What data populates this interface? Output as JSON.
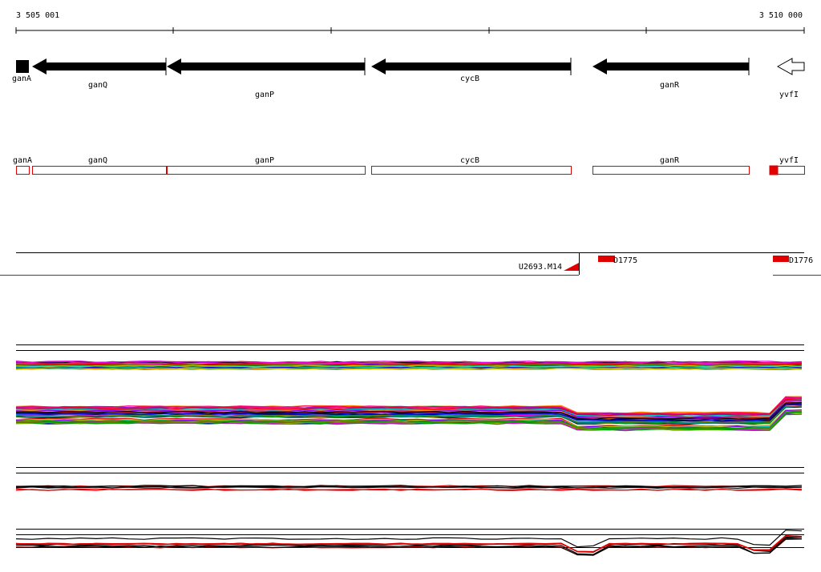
{
  "ruler": {
    "start": "3 505 001",
    "end": "3 510 000"
  },
  "genes": [
    "ganA",
    "ganQ",
    "ganP",
    "cycB",
    "ganR",
    "yvfI"
  ],
  "transcripts": [
    "ganA",
    "ganQ",
    "ganP",
    "cycB",
    "ganR",
    "yvfI"
  ],
  "features": [
    "U2693.M14",
    "D1775",
    "D1776"
  ]
}
